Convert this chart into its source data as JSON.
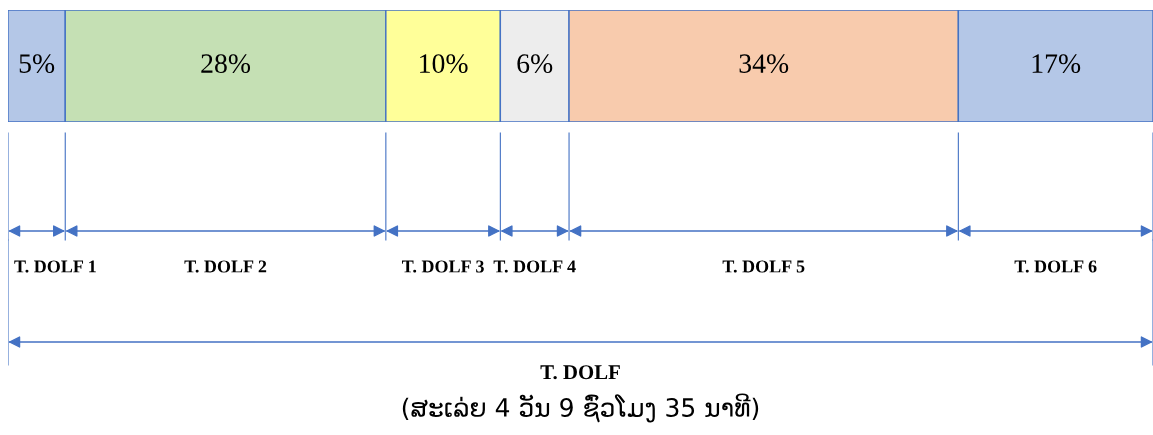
{
  "chart_data": {
    "type": "bar",
    "orientation": "horizontal",
    "stacked": true,
    "categories": [
      null
    ],
    "xlim": [
      0,
      100
    ],
    "series": [
      {
        "color": "#b4c7e7",
        "values": [
          5
        ],
        "value_labels": [
          "5%"
        ]
      },
      {
        "color": "#c5e0b4",
        "values": [
          28
        ],
        "value_labels": [
          "28%"
        ]
      },
      {
        "color": "#ffff99",
        "values": [
          10
        ],
        "value_labels": [
          "10%"
        ]
      },
      {
        "color": "#ededed",
        "values": [
          6
        ],
        "value_labels": [
          "6%"
        ]
      },
      {
        "color": "#f8cbad",
        "values": [
          34
        ],
        "value_labels": [
          "34%"
        ]
      },
      {
        "color": "#b4c7e7",
        "values": [
          17
        ],
        "value_labels": [
          "17%"
        ]
      }
    ],
    "annotations": [
      "T. DOLF 1",
      "T. DOLF 2",
      "T. DOLF 3",
      "T. DOLF 4",
      "T. DOLF 5",
      "T. DOLF 6",
      "T. DOLF",
      "(ສະເລ່ຍ 4 ວັນ 9 ຊົ່ວໂມງ 35 ນາທີ)"
    ]
  }
}
